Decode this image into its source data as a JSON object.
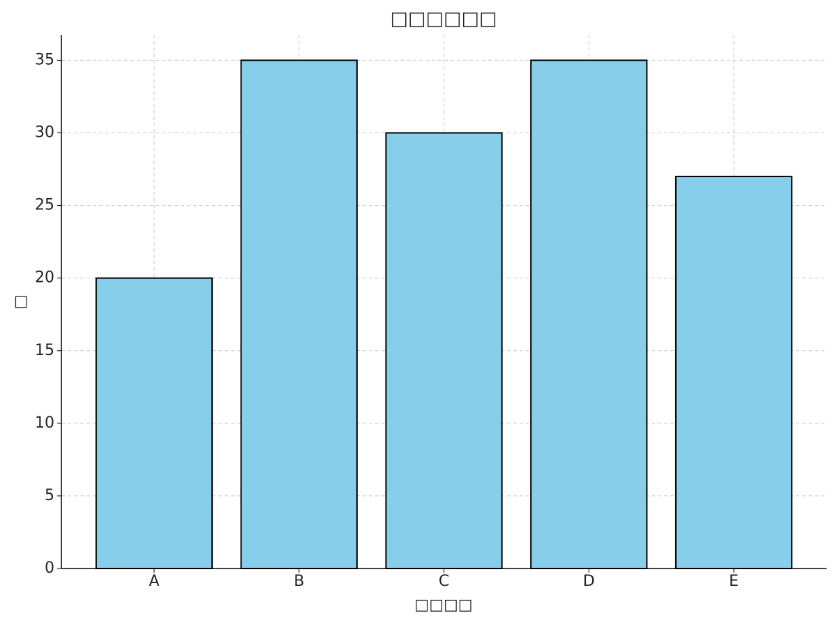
{
  "chart_data": {
    "type": "bar",
    "title": "□□□□□□",
    "x_label": "□□□□",
    "y_label": "□",
    "categories": [
      "A",
      "B",
      "C",
      "D",
      "E"
    ],
    "values": [
      20,
      35,
      30,
      35,
      27
    ],
    "color": "#87ceeb",
    "edge_color": "#000000",
    "ylim": [
      0,
      36.75
    ],
    "yticks": [
      0,
      5,
      10,
      15,
      20,
      25,
      30,
      35
    ],
    "grid": true
  }
}
